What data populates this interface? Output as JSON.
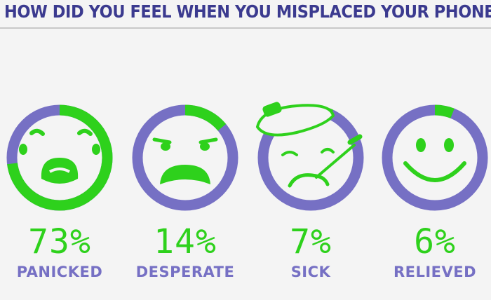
{
  "title": "HOW DID YOU FEEL WHEN YOU MISPLACED YOUR PHONE?",
  "colors": {
    "ring": "#7670c4",
    "fill": "#2ed11c",
    "title": "#3b3a8f",
    "label": "#7670c4"
  },
  "items": [
    {
      "value": "73%",
      "label": "PANICKED",
      "icon": "crying-face-icon"
    },
    {
      "value": "14%",
      "label": "DESPERATE",
      "icon": "sad-face-icon"
    },
    {
      "value": "7%",
      "label": "SICK",
      "icon": "sick-face-icon"
    },
    {
      "value": "6%",
      "label": "RELIEVED",
      "icon": "smiling-face-icon"
    }
  ],
  "chart_data": {
    "type": "pie",
    "title": "HOW DID YOU FEEL WHEN YOU MISPLACED YOUR PHONE?",
    "categories": [
      "PANICKED",
      "DESPERATE",
      "SICK",
      "RELIEVED"
    ],
    "values": [
      73,
      14,
      7,
      6
    ],
    "unit": "%"
  }
}
